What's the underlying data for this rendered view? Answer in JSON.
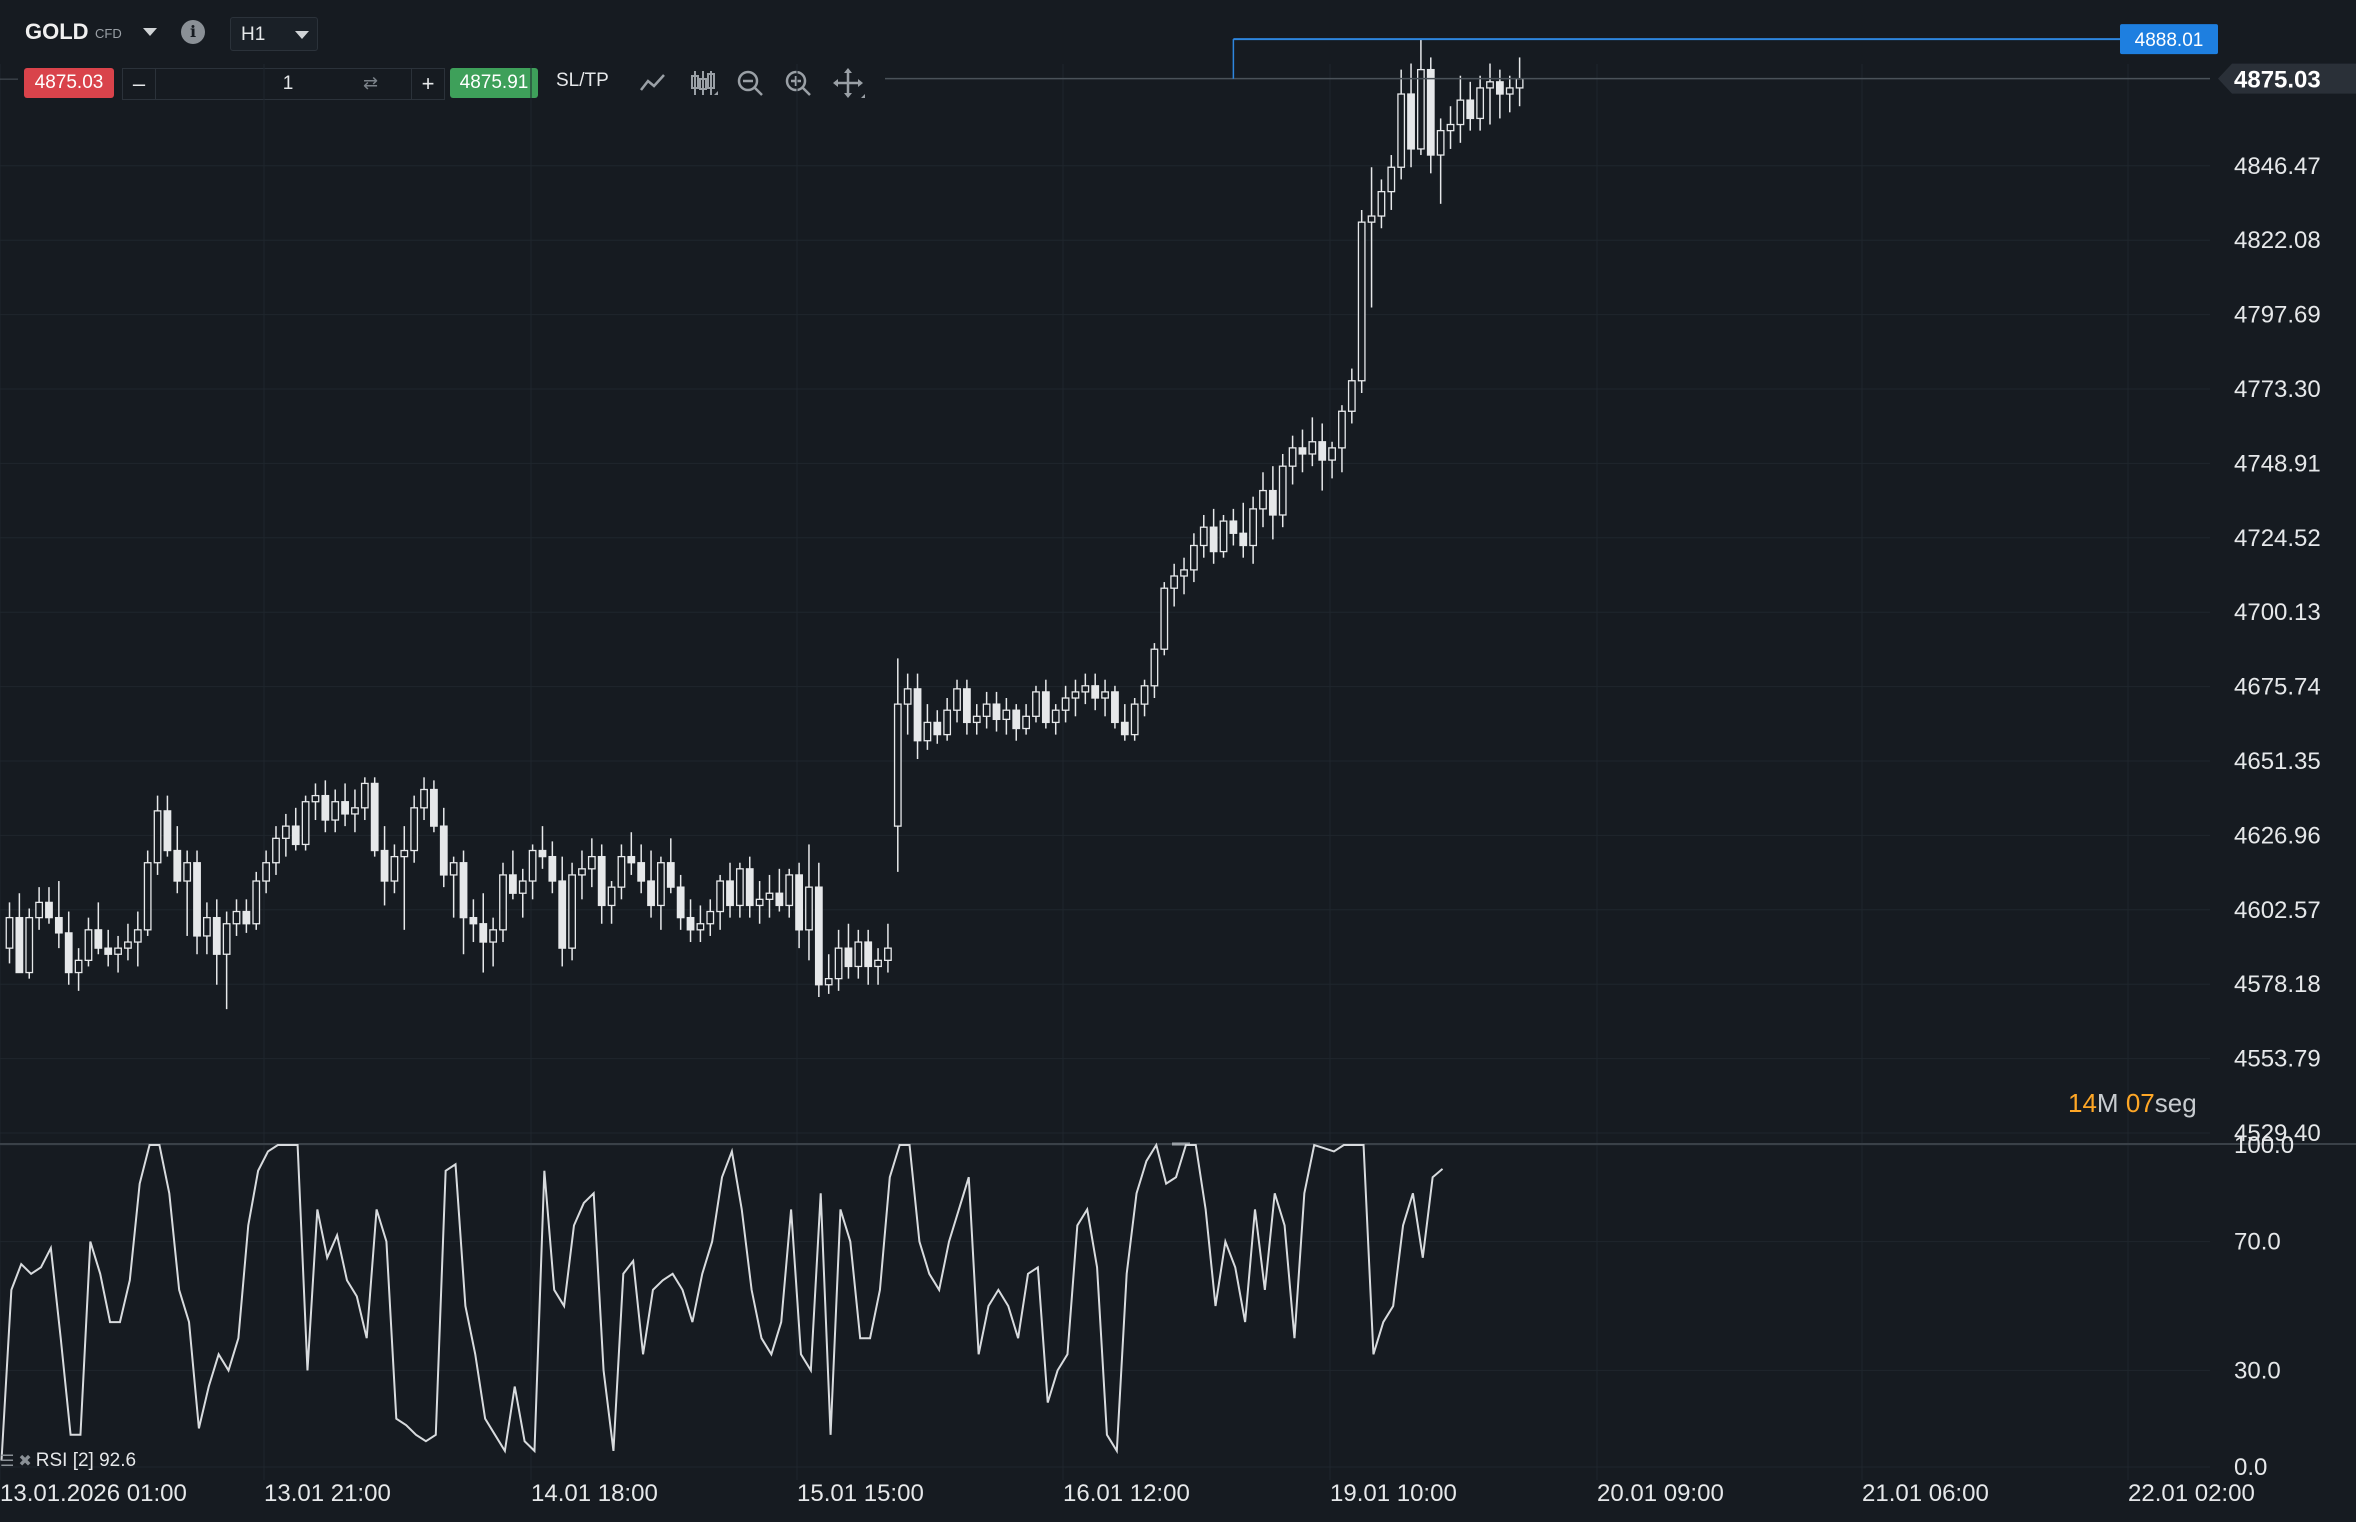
{
  "toolbar": {
    "symbol": "GOLD",
    "symbol_tag": "CFD",
    "info_icon": "info-icon",
    "timeframe": "H1",
    "sell_price": "4875.03",
    "buy_price": "4875.91",
    "quantity": "1",
    "minus_label": "–",
    "plus_label": "+",
    "swap_icon": "swap-icon",
    "sltp_label": "SL/TP",
    "tools": [
      "line-chart-icon",
      "candlestick-icon",
      "zoom-out-icon",
      "zoom-in-icon",
      "crosshair-icon"
    ]
  },
  "chart_data": [
    {
      "type": "candlestick",
      "symbol": "GOLD",
      "timeframe": "H1",
      "y_ticks": [
        "4529.40",
        "4553.79",
        "4578.18",
        "4602.57",
        "4626.96",
        "4651.35",
        "4675.74",
        "4700.13",
        "4724.52",
        "4748.91",
        "4773.30",
        "4797.69",
        "4822.08",
        "4846.47"
      ],
      "ylim": [
        4529.4,
        4885.0
      ],
      "x_ticks": [
        "13.01.2026 01:00",
        "13.01 21:00",
        "14.01 18:00",
        "15.01 15:00",
        "16.01 12:00",
        "19.01 10:00",
        "20.01 09:00",
        "21.01 06:00",
        "22.01 02:00"
      ],
      "current_price": "4875.03",
      "high_marker": "4888.01",
      "candles": [
        [
          4590,
          4605,
          4585,
          4600
        ],
        [
          4600,
          4608,
          4582,
          4582
        ],
        [
          4582,
          4603,
          4580,
          4600
        ],
        [
          4600,
          4610,
          4596,
          4605
        ],
        [
          4605,
          4610,
          4598,
          4600
        ],
        [
          4600,
          4612,
          4590,
          4595
        ],
        [
          4595,
          4602,
          4578,
          4582
        ],
        [
          4582,
          4590,
          4576,
          4586
        ],
        [
          4586,
          4600,
          4584,
          4596
        ],
        [
          4596,
          4605,
          4588,
          4590
        ],
        [
          4590,
          4596,
          4584,
          4588
        ],
        [
          4588,
          4594,
          4582,
          4590
        ],
        [
          4590,
          4598,
          4586,
          4592
        ],
        [
          4592,
          4602,
          4584,
          4596
        ],
        [
          4596,
          4622,
          4594,
          4618
        ],
        [
          4618,
          4640,
          4614,
          4635
        ],
        [
          4635,
          4640,
          4620,
          4622
        ],
        [
          4622,
          4630,
          4608,
          4612
        ],
        [
          4612,
          4622,
          4594,
          4618
        ],
        [
          4618,
          4622,
          4588,
          4594
        ],
        [
          4594,
          4605,
          4588,
          4600
        ],
        [
          4600,
          4606,
          4578,
          4588
        ],
        [
          4588,
          4602,
          4570,
          4598
        ],
        [
          4598,
          4606,
          4594,
          4602
        ],
        [
          4602,
          4606,
          4595,
          4598
        ],
        [
          4598,
          4615,
          4596,
          4612
        ],
        [
          4612,
          4622,
          4608,
          4618
        ],
        [
          4618,
          4630,
          4614,
          4626
        ],
        [
          4626,
          4634,
          4620,
          4630
        ],
        [
          4630,
          4636,
          4622,
          4624
        ],
        [
          4624,
          4640,
          4622,
          4638
        ],
        [
          4638,
          4644,
          4632,
          4640
        ],
        [
          4640,
          4645,
          4628,
          4632
        ],
        [
          4632,
          4642,
          4628,
          4638
        ],
        [
          4638,
          4644,
          4630,
          4634
        ],
        [
          4634,
          4642,
          4628,
          4636
        ],
        [
          4636,
          4646,
          4632,
          4644
        ],
        [
          4644,
          4646,
          4620,
          4622
        ],
        [
          4622,
          4630,
          4604,
          4612
        ],
        [
          4612,
          4624,
          4608,
          4620
        ],
        [
          4620,
          4630,
          4596,
          4622
        ],
        [
          4622,
          4640,
          4618,
          4636
        ],
        [
          4636,
          4646,
          4632,
          4642
        ],
        [
          4642,
          4645,
          4628,
          4630
        ],
        [
          4630,
          4636,
          4610,
          4614
        ],
        [
          4614,
          4620,
          4600,
          4618
        ],
        [
          4618,
          4622,
          4588,
          4600
        ],
        [
          4600,
          4606,
          4592,
          4598
        ],
        [
          4598,
          4608,
          4582,
          4592
        ],
        [
          4592,
          4600,
          4584,
          4596
        ],
        [
          4596,
          4618,
          4592,
          4614
        ],
        [
          4614,
          4622,
          4606,
          4608
        ],
        [
          4608,
          4616,
          4600,
          4612
        ],
        [
          4612,
          4624,
          4606,
          4622
        ],
        [
          4622,
          4630,
          4616,
          4620
        ],
        [
          4620,
          4625,
          4608,
          4612
        ],
        [
          4612,
          4620,
          4584,
          4590
        ],
        [
          4590,
          4618,
          4586,
          4614
        ],
        [
          4614,
          4622,
          4606,
          4616
        ],
        [
          4616,
          4626,
          4610,
          4620
        ],
        [
          4620,
          4624,
          4598,
          4604
        ],
        [
          4604,
          4612,
          4598,
          4610
        ],
        [
          4610,
          4624,
          4606,
          4620
        ],
        [
          4620,
          4628,
          4614,
          4618
        ],
        [
          4618,
          4624,
          4608,
          4612
        ],
        [
          4612,
          4622,
          4600,
          4604
        ],
        [
          4604,
          4620,
          4596,
          4618
        ],
        [
          4618,
          4626,
          4608,
          4610
        ],
        [
          4610,
          4614,
          4596,
          4600
        ],
        [
          4600,
          4606,
          4592,
          4596
        ],
        [
          4596,
          4604,
          4592,
          4598
        ],
        [
          4598,
          4606,
          4594,
          4602
        ],
        [
          4602,
          4614,
          4596,
          4612
        ],
        [
          4612,
          4618,
          4600,
          4604
        ],
        [
          4604,
          4618,
          4600,
          4616
        ],
        [
          4616,
          4620,
          4600,
          4604
        ],
        [
          4604,
          4612,
          4598,
          4606
        ],
        [
          4606,
          4614,
          4600,
          4608
        ],
        [
          4608,
          4616,
          4602,
          4604
        ],
        [
          4604,
          4616,
          4600,
          4614
        ],
        [
          4614,
          4618,
          4590,
          4596
        ],
        [
          4596,
          4624,
          4586,
          4610
        ],
        [
          4610,
          4618,
          4574,
          4578
        ],
        [
          4578,
          4588,
          4575,
          4580
        ],
        [
          4580,
          4596,
          4576,
          4590
        ],
        [
          4590,
          4598,
          4580,
          4584
        ],
        [
          4584,
          4596,
          4580,
          4592
        ],
        [
          4592,
          4596,
          4578,
          4584
        ],
        [
          4584,
          4590,
          4578,
          4586
        ],
        [
          4586,
          4598,
          4582,
          4590
        ],
        [
          4630,
          4685,
          4615,
          4670
        ],
        [
          4670,
          4680,
          4660,
          4675
        ],
        [
          4675,
          4680,
          4652,
          4658
        ],
        [
          4658,
          4670,
          4655,
          4664
        ],
        [
          4664,
          4668,
          4657,
          4660
        ],
        [
          4660,
          4672,
          4658,
          4668
        ],
        [
          4668,
          4678,
          4664,
          4675
        ],
        [
          4675,
          4678,
          4660,
          4664
        ],
        [
          4664,
          4670,
          4660,
          4666
        ],
        [
          4666,
          4674,
          4662,
          4670
        ],
        [
          4670,
          4674,
          4661,
          4665
        ],
        [
          4665,
          4672,
          4660,
          4668
        ],
        [
          4668,
          4670,
          4658,
          4662
        ],
        [
          4662,
          4670,
          4660,
          4666
        ],
        [
          4666,
          4676,
          4664,
          4674
        ],
        [
          4674,
          4678,
          4662,
          4664
        ],
        [
          4664,
          4670,
          4660,
          4668
        ],
        [
          4668,
          4676,
          4664,
          4672
        ],
        [
          4672,
          4678,
          4666,
          4674
        ],
        [
          4674,
          4680,
          4670,
          4676
        ],
        [
          4676,
          4680,
          4668,
          4672
        ],
        [
          4672,
          4678,
          4666,
          4674
        ],
        [
          4674,
          4676,
          4662,
          4664
        ],
        [
          4664,
          4670,
          4658,
          4660
        ],
        [
          4660,
          4672,
          4658,
          4670
        ],
        [
          4670,
          4678,
          4666,
          4676
        ],
        [
          4676,
          4690,
          4672,
          4688
        ],
        [
          4688,
          4710,
          4686,
          4708
        ],
        [
          4708,
          4716,
          4702,
          4712
        ],
        [
          4712,
          4718,
          4706,
          4714
        ],
        [
          4714,
          4726,
          4710,
          4722
        ],
        [
          4722,
          4732,
          4718,
          4728
        ],
        [
          4728,
          4734,
          4716,
          4720
        ],
        [
          4720,
          4732,
          4718,
          4730
        ],
        [
          4730,
          4734,
          4722,
          4726
        ],
        [
          4726,
          4736,
          4718,
          4722
        ],
        [
          4722,
          4738,
          4716,
          4734
        ],
        [
          4734,
          4746,
          4728,
          4740
        ],
        [
          4740,
          4748,
          4724,
          4732
        ],
        [
          4732,
          4752,
          4728,
          4748
        ],
        [
          4748,
          4758,
          4742,
          4754
        ],
        [
          4754,
          4760,
          4746,
          4752
        ],
        [
          4752,
          4764,
          4748,
          4756
        ],
        [
          4756,
          4762,
          4740,
          4750
        ],
        [
          4750,
          4756,
          4744,
          4754
        ],
        [
          4754,
          4768,
          4746,
          4766
        ],
        [
          4766,
          4780,
          4762,
          4776
        ],
        [
          4776,
          4832,
          4772,
          4828
        ],
        [
          4828,
          4846,
          4800,
          4830
        ],
        [
          4830,
          4842,
          4826,
          4838
        ],
        [
          4838,
          4850,
          4832,
          4846
        ],
        [
          4846,
          4878,
          4842,
          4870
        ],
        [
          4870,
          4880,
          4846,
          4852
        ],
        [
          4852,
          4888,
          4850,
          4878
        ],
        [
          4878,
          4882,
          4844,
          4850
        ],
        [
          4850,
          4862,
          4834,
          4858
        ],
        [
          4858,
          4866,
          4852,
          4860
        ],
        [
          4860,
          4876,
          4854,
          4868
        ],
        [
          4868,
          4874,
          4858,
          4862
        ],
        [
          4862,
          4876,
          4858,
          4872
        ],
        [
          4872,
          4880,
          4860,
          4874
        ],
        [
          4874,
          4878,
          4862,
          4870
        ],
        [
          4870,
          4876,
          4864,
          4872
        ],
        [
          4872,
          4882,
          4866,
          4875
        ]
      ]
    },
    {
      "type": "line",
      "name": "RSI [2]",
      "legend_text": "RSI [2] 92.6",
      "y_ticks": [
        "0.0",
        "30.0",
        "70.0",
        "100.0"
      ],
      "ylim": [
        0,
        100
      ],
      "values": [
        2,
        55,
        63,
        60,
        62,
        68,
        40,
        10,
        10,
        70,
        60,
        45,
        45,
        58,
        88,
        100,
        100,
        85,
        55,
        45,
        12,
        25,
        35,
        30,
        40,
        75,
        92,
        98,
        100,
        100,
        100,
        30,
        80,
        65,
        72,
        58,
        53,
        40,
        80,
        70,
        15,
        13,
        10,
        8,
        10,
        92,
        94,
        50,
        35,
        15,
        10,
        5,
        25,
        8,
        5,
        92,
        55,
        50,
        75,
        82,
        85,
        30,
        5,
        60,
        64,
        35,
        55,
        58,
        60,
        55,
        45,
        60,
        70,
        90,
        98,
        80,
        55,
        40,
        35,
        45,
        80,
        35,
        30,
        85,
        10,
        80,
        70,
        40,
        40,
        55,
        90,
        100,
        100,
        70,
        60,
        55,
        70,
        80,
        90,
        35,
        50,
        55,
        50,
        40,
        60,
        62,
        20,
        30,
        35,
        75,
        80,
        62,
        10,
        5,
        60,
        85,
        95,
        100,
        88,
        90,
        100,
        100,
        80,
        50,
        70,
        62,
        45,
        80,
        55,
        85,
        75,
        40,
        85,
        100,
        99,
        98,
        100,
        100,
        100,
        35,
        45,
        50,
        75,
        85,
        65,
        90,
        92.6
      ]
    }
  ],
  "countdown": {
    "minutes": "14",
    "minutes_unit": "M",
    "seconds": "07",
    "seconds_unit": "seg"
  }
}
